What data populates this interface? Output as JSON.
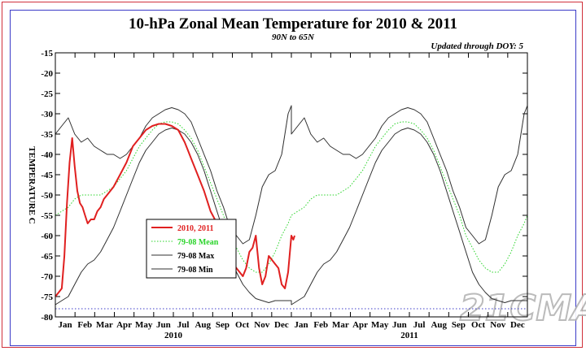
{
  "chart_data": {
    "type": "line",
    "title": "10-hPa Zonal Mean Temperature for 2010 & 2011",
    "subtitle": "90N to 65N",
    "update_note": "Updated through DOY:   5",
    "ylabel": "TEMPERATURE C",
    "ylim": [
      -80,
      -15
    ],
    "xlim": [
      0,
      730
    ],
    "yticks": [
      -15,
      -20,
      -25,
      -30,
      -35,
      -40,
      -45,
      -50,
      -55,
      -60,
      -65,
      -70,
      -75,
      -80
    ],
    "months": [
      "Jan",
      "Feb",
      "Mar",
      "Apr",
      "May",
      "Jun",
      "Jul",
      "Aug",
      "Sep",
      "Oct",
      "Nov",
      "Dec",
      "Jan",
      "Feb",
      "Mar",
      "Apr",
      "May",
      "Jun",
      "Jul",
      "Aug",
      "Sep",
      "Oct",
      "Nov",
      "Dec"
    ],
    "years": [
      "2010",
      "2011"
    ],
    "reference_line": -78,
    "series": [
      {
        "name": "2010, 2011",
        "color": "#e02020",
        "style": "solid",
        "x": [
          0,
          5,
          10,
          14,
          18,
          22,
          26,
          30,
          34,
          38,
          42,
          46,
          50,
          55,
          60,
          65,
          70,
          75,
          80,
          90,
          100,
          110,
          120,
          130,
          140,
          150,
          160,
          170,
          180,
          190,
          200,
          205,
          210,
          215,
          220,
          230,
          240,
          250,
          260,
          270,
          280,
          290,
          295,
          300,
          305,
          310,
          315,
          320,
          325,
          330,
          335,
          340,
          345,
          350,
          355,
          360,
          365,
          368,
          370
        ],
        "y": [
          -75,
          -74,
          -73,
          -65,
          -52,
          -42,
          -36,
          -43,
          -49,
          -52,
          -53,
          -55,
          -57,
          -56,
          -56,
          -54,
          -53,
          -51,
          -50,
          -48,
          -45,
          -42,
          -38,
          -36,
          -34,
          -33,
          -32.5,
          -32.5,
          -33,
          -34,
          -37,
          -39,
          -41,
          -43,
          -45,
          -49,
          -54,
          -57,
          -63,
          -66,
          -68,
          -70,
          -68,
          -64,
          -63,
          -60,
          -68,
          -72,
          -70,
          -65,
          -66,
          -67,
          -68,
          -72,
          -73,
          -69,
          -60,
          -61,
          -60
        ]
      },
      {
        "name": "79-08 Mean",
        "color": "#2ad42a",
        "style": "dotted",
        "x": [
          0,
          10,
          20,
          30,
          40,
          50,
          60,
          70,
          80,
          90,
          100,
          110,
          120,
          130,
          140,
          150,
          160,
          170,
          180,
          190,
          200,
          210,
          220,
          230,
          240,
          250,
          260,
          270,
          280,
          290,
          300,
          310,
          320,
          330,
          340,
          350,
          360,
          365
        ],
        "y": [
          -55,
          -54,
          -53,
          -51,
          -50,
          -50,
          -50,
          -50,
          -49,
          -48,
          -46,
          -44,
          -41,
          -38,
          -36,
          -34,
          -32.5,
          -32,
          -32,
          -32.5,
          -34,
          -36,
          -39,
          -43,
          -47,
          -51,
          -55,
          -60,
          -63,
          -66,
          -68,
          -69,
          -69,
          -67,
          -64,
          -60,
          -57,
          -55
        ]
      },
      {
        "name": "79-08 Max",
        "color": "#303030",
        "style": "solid",
        "x": [
          0,
          10,
          20,
          30,
          40,
          50,
          60,
          70,
          80,
          90,
          100,
          110,
          120,
          130,
          140,
          150,
          160,
          170,
          180,
          190,
          200,
          210,
          220,
          230,
          240,
          250,
          260,
          270,
          280,
          290,
          300,
          310,
          320,
          330,
          340,
          350,
          360,
          365
        ],
        "y": [
          -35,
          -33,
          -31,
          -35,
          -37,
          -36,
          -38,
          -39,
          -40,
          -40,
          -41,
          -40,
          -38,
          -36,
          -33,
          -31,
          -30,
          -29,
          -28.5,
          -29,
          -30,
          -32,
          -36,
          -40,
          -44,
          -49,
          -53,
          -58,
          -60,
          -62,
          -61,
          -55,
          -48,
          -45,
          -44,
          -40,
          -30,
          -28
        ]
      },
      {
        "name": "79-08 Min",
        "color": "#303030",
        "style": "solid",
        "x": [
          0,
          10,
          20,
          30,
          40,
          50,
          60,
          70,
          80,
          90,
          100,
          110,
          120,
          130,
          140,
          150,
          160,
          170,
          180,
          190,
          200,
          210,
          220,
          230,
          240,
          250,
          260,
          270,
          280,
          290,
          300,
          310,
          320,
          330,
          340,
          350,
          360,
          365
        ],
        "y": [
          -77,
          -76,
          -75,
          -72,
          -69,
          -67,
          -66,
          -64,
          -61,
          -58,
          -54,
          -50,
          -46,
          -42,
          -39,
          -37,
          -35,
          -34,
          -33.5,
          -34,
          -35,
          -37,
          -40,
          -44,
          -49,
          -54,
          -59,
          -64,
          -69,
          -72,
          -74,
          -75.5,
          -76,
          -76.5,
          -76,
          -76,
          -76,
          -76
        ]
      }
    ]
  },
  "watermark": "21CMA"
}
